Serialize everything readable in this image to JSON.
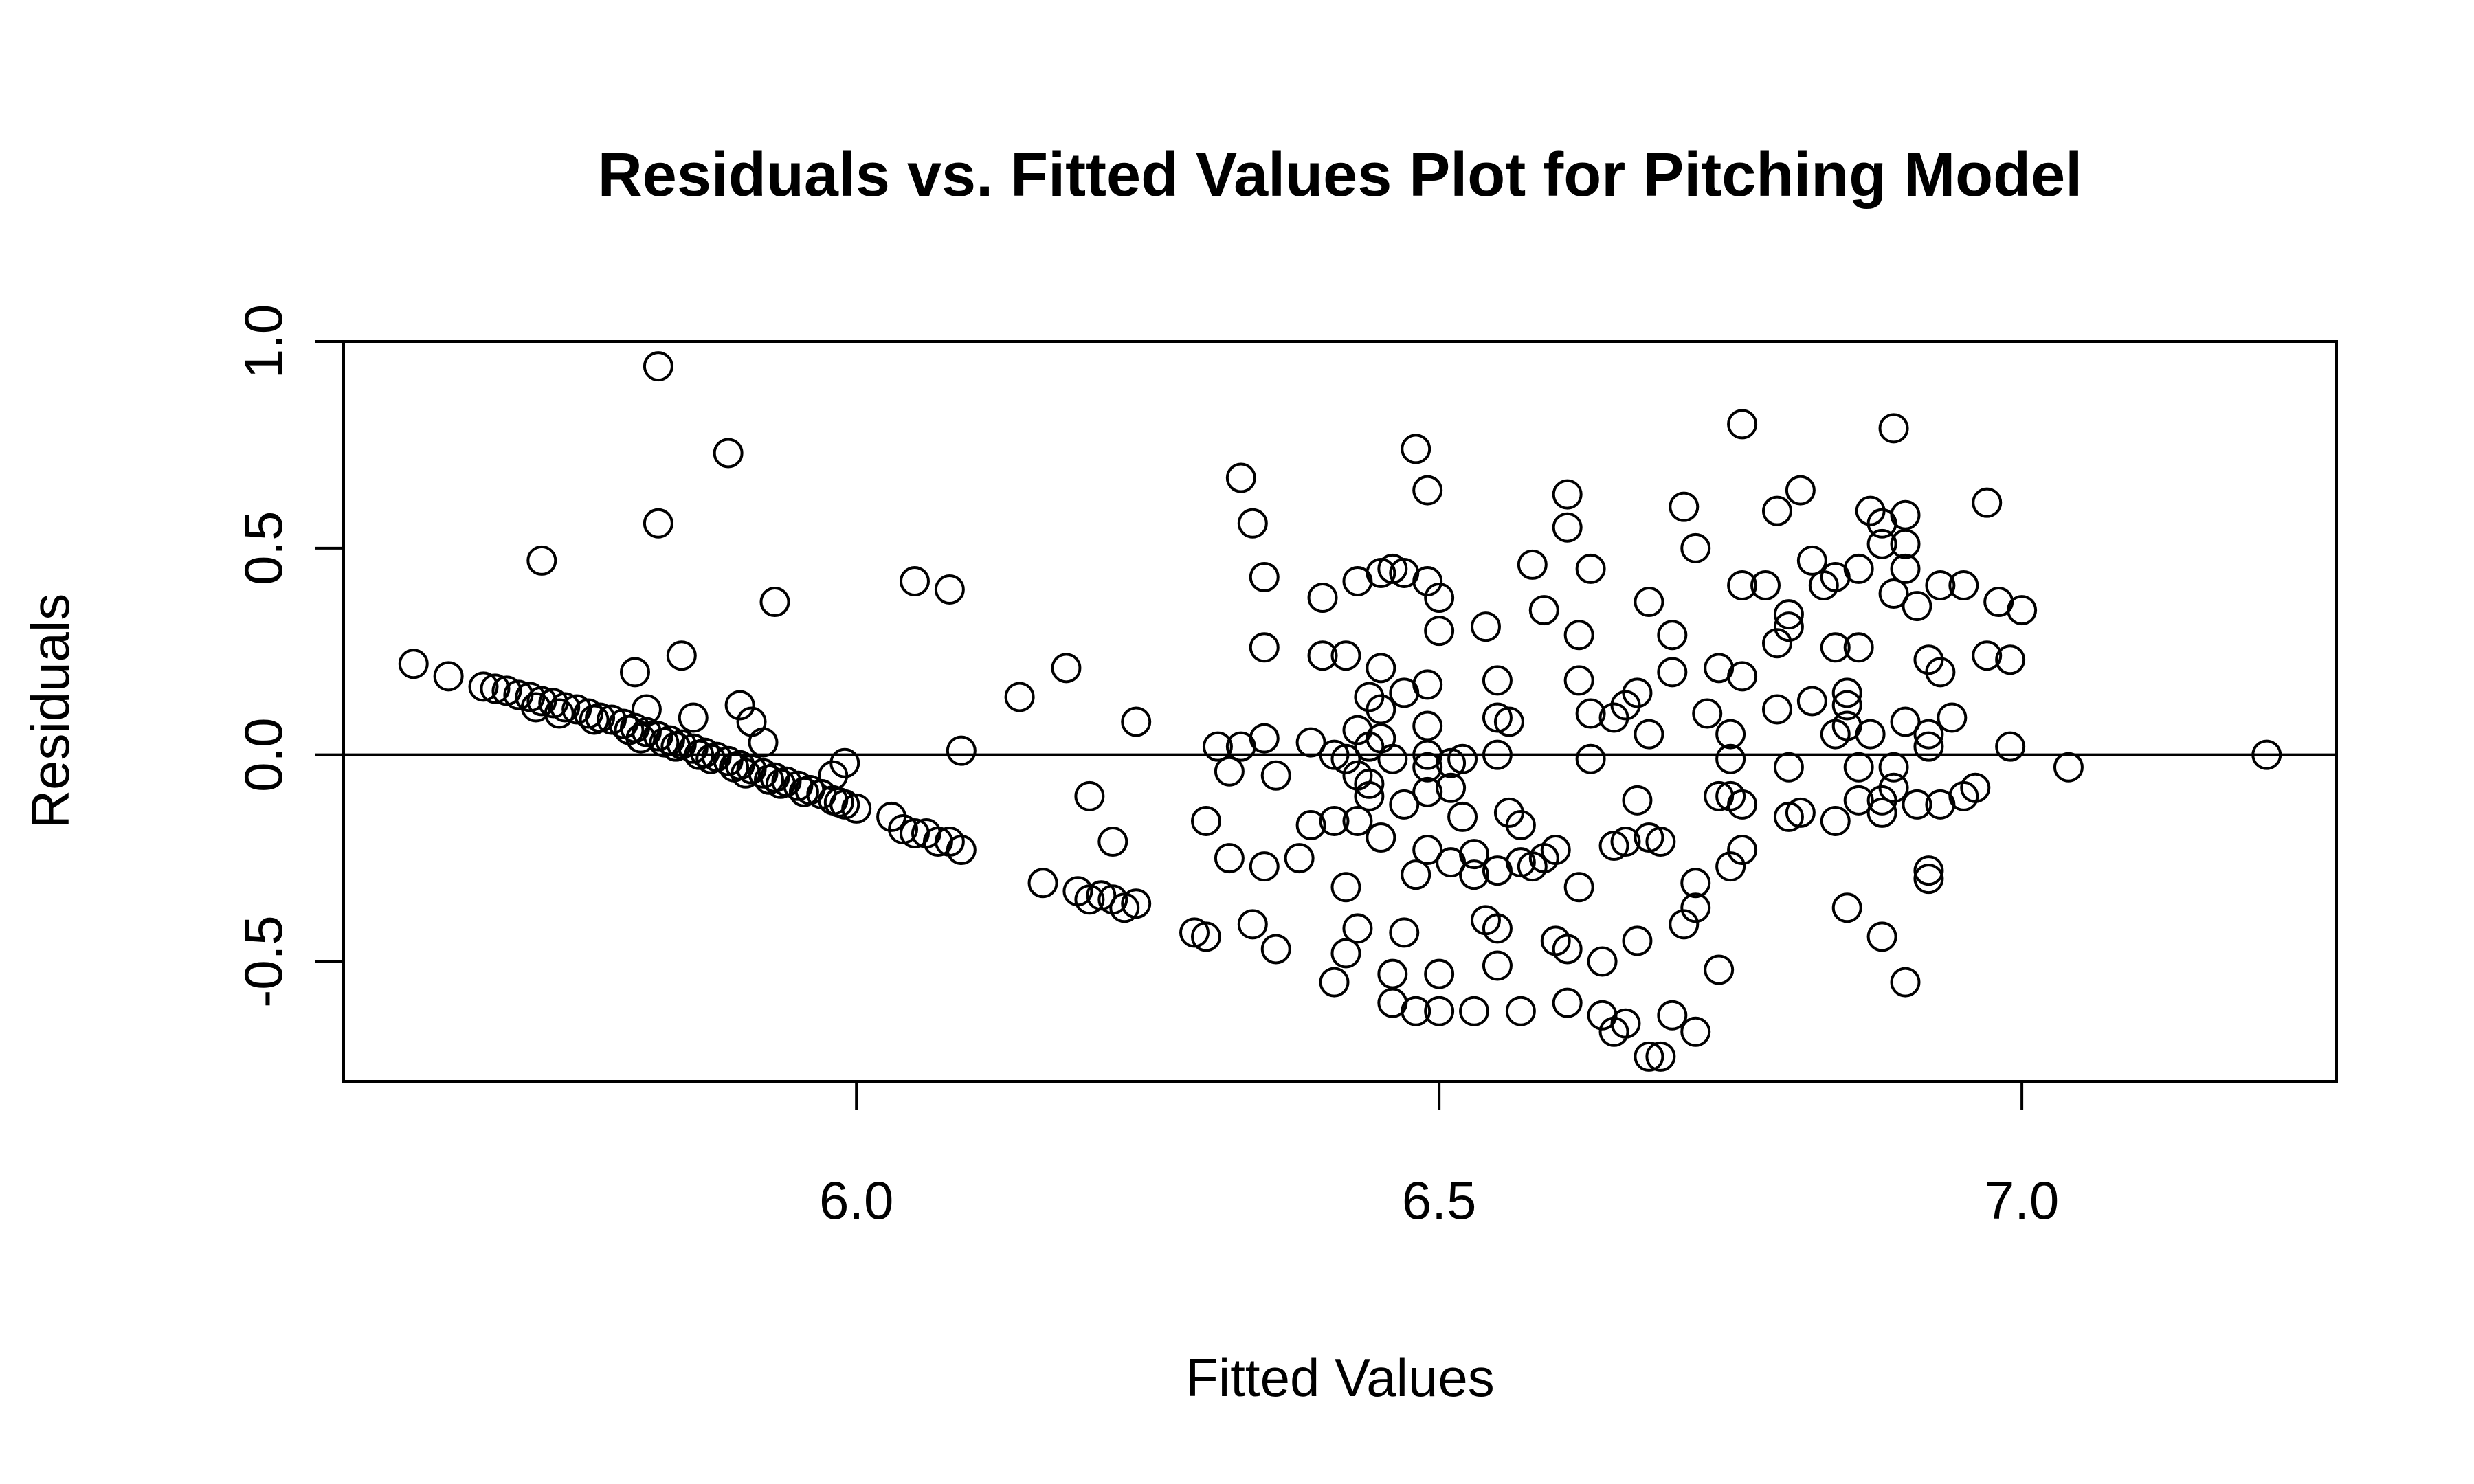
{
  "chart_data": {
    "type": "scatter",
    "title": "Residuals vs. Fitted Values Plot for Pitching Model",
    "xlabel": "Fitted Values",
    "ylabel": "Residuals",
    "xlim": [
      5.56,
      7.27
    ],
    "ylim": [
      -0.79,
      1.0
    ],
    "xticks": [
      6.0,
      6.5,
      7.0
    ],
    "xtick_labels": [
      "6.0",
      "6.5",
      "7.0"
    ],
    "yticks": [
      -0.5,
      0.0,
      0.5,
      1.0
    ],
    "ytick_labels": [
      "-0.5",
      "0.0",
      "0.5",
      "1.0"
    ],
    "reference_line_y": 0,
    "grid": false,
    "legend": "none",
    "marker": "open-circle",
    "color": "#000000",
    "points": [
      [
        5.62,
        0.22
      ],
      [
        5.65,
        0.19
      ],
      [
        5.68,
        0.165
      ],
      [
        5.69,
        0.16
      ],
      [
        5.7,
        0.155
      ],
      [
        5.71,
        0.145
      ],
      [
        5.72,
        0.14
      ],
      [
        5.73,
        0.13
      ],
      [
        5.74,
        0.125
      ],
      [
        5.75,
        0.115
      ],
      [
        5.76,
        0.11
      ],
      [
        5.77,
        0.1
      ],
      [
        5.78,
        0.09
      ],
      [
        5.79,
        0.085
      ],
      [
        5.8,
        0.075
      ],
      [
        5.81,
        0.065
      ],
      [
        5.82,
        0.055
      ],
      [
        5.83,
        0.045
      ],
      [
        5.84,
        0.035
      ],
      [
        5.85,
        0.025
      ],
      [
        5.86,
        0.015
      ],
      [
        5.87,
        0.005
      ],
      [
        5.88,
        -0.005
      ],
      [
        5.89,
        -0.015
      ],
      [
        5.9,
        -0.025
      ],
      [
        5.91,
        -0.035
      ],
      [
        5.92,
        -0.045
      ],
      [
        5.93,
        -0.055
      ],
      [
        5.94,
        -0.065
      ],
      [
        5.95,
        -0.075
      ],
      [
        5.96,
        -0.085
      ],
      [
        5.97,
        -0.095
      ],
      [
        5.98,
        -0.11
      ],
      [
        5.99,
        -0.12
      ],
      [
        6.0,
        -0.13
      ],
      [
        5.745,
        0.1
      ],
      [
        5.775,
        0.085
      ],
      [
        5.805,
        0.06
      ],
      [
        5.835,
        0.03
      ],
      [
        5.865,
        0.0
      ],
      [
        5.895,
        -0.03
      ],
      [
        5.925,
        -0.06
      ],
      [
        5.955,
        -0.09
      ],
      [
        5.985,
        -0.115
      ],
      [
        5.725,
        0.115
      ],
      [
        5.815,
        0.04
      ],
      [
        5.845,
        0.02
      ],
      [
        5.875,
        -0.01
      ],
      [
        5.905,
        -0.045
      ],
      [
        5.935,
        -0.07
      ],
      [
        5.83,
        0.94
      ],
      [
        5.89,
        0.73
      ],
      [
        5.83,
        0.56
      ],
      [
        5.73,
        0.47
      ],
      [
        5.93,
        0.37
      ],
      [
        5.85,
        0.24
      ],
      [
        5.81,
        0.2
      ],
      [
        5.82,
        0.11
      ],
      [
        5.86,
        0.09
      ],
      [
        5.9,
        0.12
      ],
      [
        5.91,
        0.08
      ],
      [
        5.92,
        0.03
      ],
      [
        5.98,
        -0.05
      ],
      [
        5.99,
        -0.02
      ],
      [
        6.05,
        0.42
      ],
      [
        6.08,
        0.4
      ],
      [
        6.09,
        0.01
      ],
      [
        6.03,
        -0.15
      ],
      [
        6.04,
        -0.18
      ],
      [
        6.05,
        -0.19
      ],
      [
        6.06,
        -0.19
      ],
      [
        6.07,
        -0.21
      ],
      [
        6.08,
        -0.21
      ],
      [
        6.09,
        -0.23
      ],
      [
        6.14,
        0.14
      ],
      [
        6.18,
        0.21
      ],
      [
        6.16,
        -0.31
      ],
      [
        6.19,
        -0.33
      ],
      [
        6.2,
        -0.35
      ],
      [
        6.21,
        -0.34
      ],
      [
        6.22,
        -0.35
      ],
      [
        6.2,
        -0.1
      ],
      [
        6.22,
        -0.21
      ],
      [
        6.24,
        0.08
      ],
      [
        6.23,
        -0.37
      ],
      [
        6.24,
        -0.36
      ],
      [
        6.29,
        -0.43
      ],
      [
        6.3,
        -0.44
      ],
      [
        6.3,
        -0.16
      ],
      [
        6.31,
        0.02
      ],
      [
        6.32,
        -0.04
      ],
      [
        6.32,
        -0.25
      ],
      [
        6.33,
        0.02
      ],
      [
        6.33,
        0.67
      ],
      [
        6.34,
        0.56
      ],
      [
        6.35,
        0.43
      ],
      [
        6.35,
        0.26
      ],
      [
        6.35,
        0.04
      ],
      [
        6.35,
        -0.27
      ],
      [
        6.36,
        -0.05
      ],
      [
        6.36,
        -0.47
      ],
      [
        6.34,
        -0.41
      ],
      [
        6.38,
        -0.25
      ],
      [
        6.39,
        0.03
      ],
      [
        6.39,
        -0.17
      ],
      [
        6.4,
        0.38
      ],
      [
        6.4,
        0.24
      ],
      [
        6.41,
        0.0
      ],
      [
        6.41,
        -0.16
      ],
      [
        6.41,
        -0.55
      ],
      [
        6.42,
        0.24
      ],
      [
        6.42,
        -0.01
      ],
      [
        6.42,
        -0.32
      ],
      [
        6.42,
        -0.48
      ],
      [
        6.43,
        0.42
      ],
      [
        6.43,
        0.06
      ],
      [
        6.43,
        -0.05
      ],
      [
        6.43,
        -0.16
      ],
      [
        6.43,
        -0.42
      ],
      [
        6.44,
        0.14
      ],
      [
        6.44,
        0.02
      ],
      [
        6.44,
        -0.07
      ],
      [
        6.44,
        -0.1
      ],
      [
        6.45,
        0.44
      ],
      [
        6.45,
        0.21
      ],
      [
        6.45,
        0.11
      ],
      [
        6.45,
        0.04
      ],
      [
        6.45,
        -0.2
      ],
      [
        6.46,
        0.45
      ],
      [
        6.46,
        -0.01
      ],
      [
        6.46,
        -0.53
      ],
      [
        6.46,
        -0.6
      ],
      [
        6.47,
        0.44
      ],
      [
        6.47,
        0.15
      ],
      [
        6.47,
        -0.12
      ],
      [
        6.47,
        -0.43
      ],
      [
        6.48,
        0.74
      ],
      [
        6.48,
        -0.29
      ],
      [
        6.48,
        -0.62
      ],
      [
        6.49,
        0.64
      ],
      [
        6.49,
        0.42
      ],
      [
        6.49,
        0.17
      ],
      [
        6.49,
        0.07
      ],
      [
        6.49,
        0.0
      ],
      [
        6.49,
        -0.03
      ],
      [
        6.49,
        -0.09
      ],
      [
        6.49,
        -0.23
      ],
      [
        6.5,
        0.38
      ],
      [
        6.5,
        0.3
      ],
      [
        6.5,
        -0.53
      ],
      [
        6.5,
        -0.62
      ],
      [
        6.51,
        -0.02
      ],
      [
        6.51,
        -0.08
      ],
      [
        6.51,
        -0.26
      ],
      [
        6.52,
        -0.01
      ],
      [
        6.52,
        -0.15
      ],
      [
        6.53,
        -0.24
      ],
      [
        6.53,
        -0.29
      ],
      [
        6.53,
        -0.62
      ],
      [
        6.54,
        0.31
      ],
      [
        6.54,
        -0.4
      ],
      [
        6.55,
        0.18
      ],
      [
        6.55,
        0.09
      ],
      [
        6.55,
        0.0
      ],
      [
        6.55,
        -0.28
      ],
      [
        6.55,
        -0.42
      ],
      [
        6.55,
        -0.51
      ],
      [
        6.56,
        0.08
      ],
      [
        6.56,
        -0.14
      ],
      [
        6.57,
        -0.17
      ],
      [
        6.57,
        -0.26
      ],
      [
        6.57,
        -0.62
      ],
      [
        6.58,
        0.46
      ],
      [
        6.58,
        -0.27
      ],
      [
        6.59,
        0.35
      ],
      [
        6.59,
        -0.25
      ],
      [
        6.6,
        -0.23
      ],
      [
        6.6,
        -0.45
      ],
      [
        6.61,
        0.63
      ],
      [
        6.61,
        0.55
      ],
      [
        6.61,
        -0.47
      ],
      [
        6.61,
        -0.6
      ],
      [
        6.62,
        0.29
      ],
      [
        6.62,
        0.18
      ],
      [
        6.62,
        -0.32
      ],
      [
        6.63,
        0.45
      ],
      [
        6.63,
        -0.01
      ],
      [
        6.64,
        -0.5
      ],
      [
        6.64,
        -0.63
      ],
      [
        6.65,
        -0.67
      ],
      [
        6.65,
        0.09
      ],
      [
        6.65,
        -0.22
      ],
      [
        6.66,
        0.12
      ],
      [
        6.66,
        -0.21
      ],
      [
        6.66,
        -0.65
      ],
      [
        6.67,
        0.15
      ],
      [
        6.67,
        -0.11
      ],
      [
        6.67,
        -0.45
      ],
      [
        6.68,
        0.37
      ],
      [
        6.68,
        0.05
      ],
      [
        6.68,
        -0.2
      ],
      [
        6.68,
        -0.73
      ],
      [
        6.69,
        -0.73
      ],
      [
        6.69,
        -0.21
      ],
      [
        6.7,
        0.29
      ],
      [
        6.7,
        0.2
      ],
      [
        6.7,
        -0.63
      ],
      [
        6.71,
        0.6
      ],
      [
        6.71,
        -0.41
      ],
      [
        6.72,
        0.5
      ],
      [
        6.72,
        -0.31
      ],
      [
        6.72,
        -0.37
      ],
      [
        6.72,
        -0.67
      ],
      [
        6.73,
        0.1
      ],
      [
        6.74,
        0.21
      ],
      [
        6.74,
        -0.52
      ],
      [
        6.75,
        0.05
      ],
      [
        6.75,
        -0.01
      ],
      [
        6.75,
        -0.1
      ],
      [
        6.75,
        -0.27
      ],
      [
        6.76,
        0.8
      ],
      [
        6.76,
        0.41
      ],
      [
        6.76,
        0.19
      ],
      [
        6.76,
        -0.12
      ],
      [
        6.76,
        -0.23
      ],
      [
        6.78,
        0.41
      ],
      [
        6.79,
        0.59
      ],
      [
        6.79,
        0.27
      ],
      [
        6.79,
        0.11
      ],
      [
        6.8,
        0.34
      ],
      [
        6.8,
        0.31
      ],
      [
        6.8,
        -0.03
      ],
      [
        6.8,
        -0.15
      ],
      [
        6.81,
        0.64
      ],
      [
        6.81,
        -0.14
      ],
      [
        6.82,
        0.47
      ],
      [
        6.82,
        0.13
      ],
      [
        6.83,
        0.41
      ],
      [
        6.84,
        0.43
      ],
      [
        6.84,
        0.26
      ],
      [
        6.84,
        -0.16
      ],
      [
        6.85,
        0.15
      ],
      [
        6.85,
        0.12
      ],
      [
        6.85,
        0.07
      ],
      [
        6.85,
        -0.37
      ],
      [
        6.86,
        0.45
      ],
      [
        6.86,
        0.26
      ],
      [
        6.86,
        -0.03
      ],
      [
        6.86,
        -0.11
      ],
      [
        6.87,
        0.59
      ],
      [
        6.87,
        0.05
      ],
      [
        6.88,
        0.56
      ],
      [
        6.88,
        0.51
      ],
      [
        6.88,
        -0.11
      ],
      [
        6.88,
        -0.44
      ],
      [
        6.89,
        0.79
      ],
      [
        6.89,
        0.39
      ],
      [
        6.89,
        -0.03
      ],
      [
        6.89,
        -0.08
      ],
      [
        6.9,
        0.58
      ],
      [
        6.9,
        0.45
      ],
      [
        6.9,
        0.51
      ],
      [
        6.9,
        0.08
      ],
      [
        6.9,
        -0.55
      ],
      [
        6.91,
        0.36
      ],
      [
        6.91,
        -0.12
      ],
      [
        6.92,
        0.23
      ],
      [
        6.92,
        0.05
      ],
      [
        6.92,
        0.02
      ],
      [
        6.92,
        -0.28
      ],
      [
        6.93,
        0.41
      ],
      [
        6.93,
        0.2
      ],
      [
        6.93,
        -0.12
      ],
      [
        6.94,
        0.09
      ],
      [
        6.95,
        0.41
      ],
      [
        6.95,
        -0.1
      ],
      [
        6.96,
        -0.08
      ],
      [
        6.97,
        0.61
      ],
      [
        6.97,
        0.24
      ],
      [
        6.98,
        0.37
      ],
      [
        6.99,
        0.02
      ],
      [
        6.99,
        0.23
      ],
      [
        7.0,
        0.35
      ],
      [
        7.04,
        -0.03
      ],
      [
        7.21,
        0.0
      ],
      [
        6.92,
        -0.3
      ],
      [
        6.88,
        -0.14
      ],
      [
        6.84,
        0.05
      ],
      [
        6.74,
        -0.1
      ],
      [
        6.63,
        0.1
      ]
    ]
  }
}
